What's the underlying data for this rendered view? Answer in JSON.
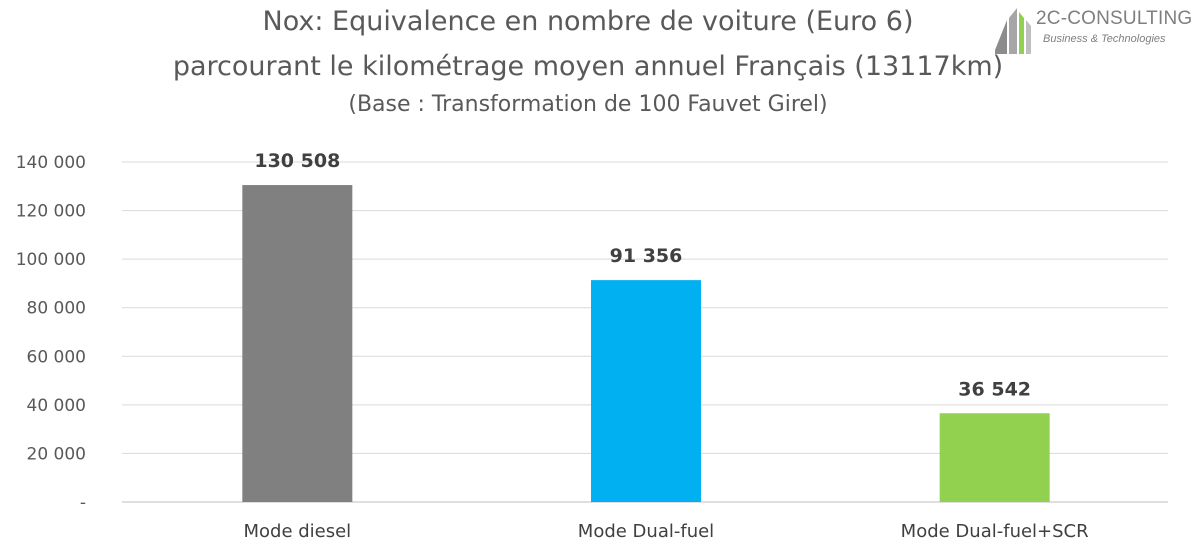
{
  "title": {
    "line1": "Nox: Equivalence en nombre de voiture (Euro 6)",
    "line2": "parcourant le kilométrage moyen annuel Français (13117km)",
    "line3": "(Base : Transformation de 100 Fauvet Girel)"
  },
  "logo": {
    "name": "2C-CONSULTING",
    "tagline": "Business & Technologies",
    "icon": "building-stripes-icon"
  },
  "chart_data": {
    "type": "bar",
    "categories": [
      "Mode diesel",
      "Mode Dual-fuel",
      "Mode Dual-fuel+SCR"
    ],
    "values": [
      130508,
      91356,
      36542
    ],
    "data_labels": [
      "130 508",
      "91 356",
      "36 542"
    ],
    "colors": [
      "#808080",
      "#00b0f0",
      "#92d050"
    ],
    "ylim": [
      0,
      140000
    ],
    "yticks": [
      0,
      20000,
      40000,
      60000,
      80000,
      100000,
      120000,
      140000
    ],
    "ytick_labels": [
      "-",
      "20 000",
      "40 000",
      "60 000",
      "80 000",
      "100 000",
      "120 000",
      "140 000"
    ],
    "grid": true,
    "legend": "none"
  }
}
